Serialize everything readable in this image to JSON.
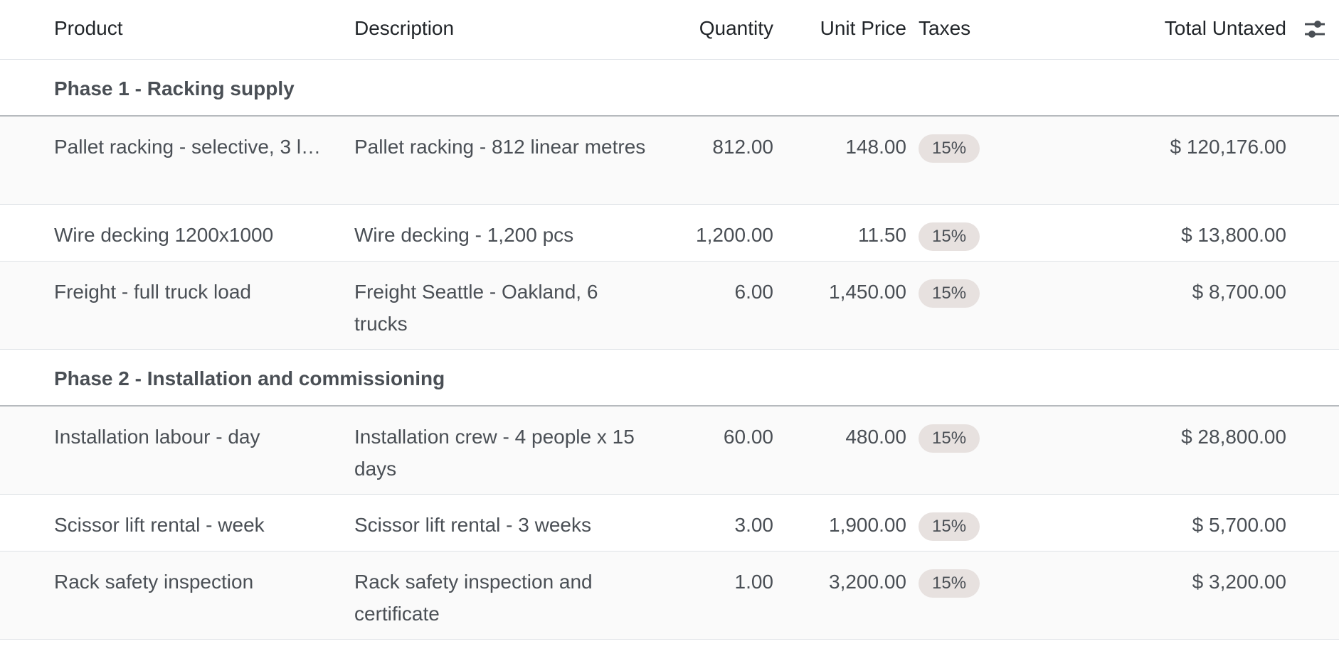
{
  "header": {
    "product": "Product",
    "description": "Description",
    "quantity": "Quantity",
    "unit_price": "Unit Price",
    "taxes": "Taxes",
    "total_untaxed": "Total Untaxed",
    "settings_icon": "sliders-icon"
  },
  "sections": [
    {
      "title": "Phase 1 - Racking supply",
      "lines": [
        {
          "product": "Pallet racking - selective, 3 l…",
          "description": "Pallet racking - 812 linear metres",
          "quantity": "812.00",
          "unit_price": "148.00",
          "tax": "15%",
          "total": "$ 120,176.00"
        },
        {
          "product": "Wire decking 1200x1000",
          "description": "Wire decking - 1,200 pcs",
          "quantity": "1,200.00",
          "unit_price": "11.50",
          "tax": "15%",
          "total": "$ 13,800.00"
        },
        {
          "product": "Freight - full truck load",
          "description": "Freight Seattle - Oakland, 6 trucks",
          "quantity": "6.00",
          "unit_price": "1,450.00",
          "tax": "15%",
          "total": "$ 8,700.00"
        }
      ]
    },
    {
      "title": "Phase 2 - Installation and commissioning",
      "lines": [
        {
          "product": "Installation labour - day",
          "description": "Installation crew - 4 people x 15 days",
          "quantity": "60.00",
          "unit_price": "480.00",
          "tax": "15%",
          "total": "$ 28,800.00"
        },
        {
          "product": "Scissor lift rental - week",
          "description": "Scissor lift rental - 3 weeks",
          "quantity": "3.00",
          "unit_price": "1,900.00",
          "tax": "15%",
          "total": "$ 5,700.00"
        },
        {
          "product": "Rack safety inspection",
          "description": "Rack safety inspection and certificate",
          "quantity": "1.00",
          "unit_price": "3,200.00",
          "tax": "15%",
          "total": "$ 3,200.00"
        }
      ]
    }
  ]
}
